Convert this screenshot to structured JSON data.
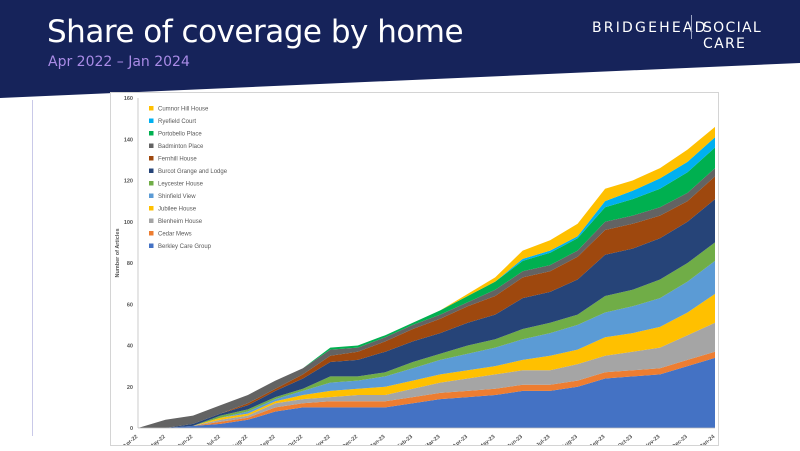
{
  "header": {
    "title": "Share of coverage by home",
    "subtitle": "Apr 2022 – Jan 2024",
    "brand_left": "BRIDGEHEAD",
    "brand_right": "SOCIAL CARE",
    "banner_color": "#16235a"
  },
  "chart_data": {
    "type": "area",
    "stacked": true,
    "categories": [
      "Apr-22",
      "May-22",
      "Jun-22",
      "Jul-22",
      "Aug-22",
      "Sep-22",
      "Oct-22",
      "Nov-22",
      "Dec-22",
      "Jan-23",
      "Feb-23",
      "Mar-23",
      "Apr-23",
      "May-23",
      "Jun-23",
      "Jul-23",
      "Aug-23",
      "Sep-23",
      "Oct-23",
      "Nov-23",
      "Dec-23",
      "Jan-24"
    ],
    "ylabel": "Number of Articles",
    "ylim": [
      0,
      160
    ],
    "yticks": [
      0,
      20,
      40,
      60,
      80,
      100,
      120,
      140,
      160
    ],
    "legend_position": "top-left",
    "series": [
      {
        "name": "Berkley Care Group",
        "color": "#4472c4",
        "values": [
          0,
          0,
          1,
          2,
          4,
          8,
          10,
          10,
          10,
          10,
          12,
          14,
          15,
          16,
          18,
          18,
          20,
          24,
          25,
          26,
          30,
          34
        ]
      },
      {
        "name": "Cedar Mews",
        "color": "#ed7d31",
        "values": [
          0,
          0,
          0,
          1,
          1,
          2,
          2,
          3,
          3,
          3,
          3,
          3,
          3,
          3,
          3,
          3,
          3,
          3,
          3,
          3,
          3,
          3
        ]
      },
      {
        "name": "Blenheim House",
        "color": "#a5a5a5",
        "values": [
          0,
          0,
          0,
          1,
          1,
          2,
          2,
          2,
          3,
          3,
          4,
          5,
          6,
          7,
          7,
          7,
          8,
          8,
          9,
          10,
          12,
          14
        ]
      },
      {
        "name": "Jubilee House",
        "color": "#ffc000",
        "values": [
          0,
          0,
          0,
          1,
          1,
          1,
          2,
          3,
          3,
          4,
          4,
          4,
          4,
          4,
          5,
          7,
          7,
          9,
          9,
          10,
          11,
          14
        ]
      },
      {
        "name": "Shinfield View",
        "color": "#5b9bd5",
        "values": [
          0,
          0,
          0,
          0,
          1,
          1,
          2,
          4,
          4,
          5,
          6,
          7,
          8,
          9,
          10,
          11,
          12,
          12,
          13,
          14,
          15,
          16
        ]
      },
      {
        "name": "Leycester House",
        "color": "#70ad47",
        "values": [
          0,
          0,
          0,
          1,
          1,
          1,
          1,
          3,
          2,
          2,
          3,
          3,
          4,
          4,
          5,
          5,
          5,
          8,
          8,
          9,
          9,
          9
        ]
      },
      {
        "name": "Burcot Grange and Lodge",
        "color": "#264478",
        "values": [
          0,
          0,
          1,
          1,
          2,
          3,
          5,
          7,
          8,
          10,
          10,
          10,
          11,
          12,
          15,
          15,
          17,
          20,
          20,
          20,
          20,
          21
        ]
      },
      {
        "name": "Fernhill House",
        "color": "#9e480e",
        "values": [
          0,
          0,
          0,
          0,
          1,
          1,
          2,
          3,
          4,
          5,
          6,
          7,
          8,
          9,
          10,
          10,
          11,
          12,
          12,
          11,
          10,
          11
        ]
      },
      {
        "name": "Badminton Place",
        "color": "#636363",
        "values": [
          0,
          4,
          4,
          4,
          4,
          4,
          3,
          3,
          2,
          2,
          2,
          2,
          2,
          3,
          3,
          3,
          3,
          4,
          4,
          4,
          4,
          4
        ]
      },
      {
        "name": "Portobello Place",
        "color": "#00b050",
        "values": [
          0,
          0,
          0,
          0,
          0,
          0,
          0,
          1,
          1,
          1,
          1,
          2,
          3,
          4,
          5,
          6,
          6,
          7,
          8,
          9,
          10,
          10
        ]
      },
      {
        "name": "Ryefield Court",
        "color": "#00b0f0",
        "values": [
          0,
          0,
          0,
          0,
          0,
          0,
          0,
          0,
          0,
          0,
          0,
          0,
          0,
          0,
          1,
          1,
          1,
          3,
          4,
          5,
          5,
          5
        ]
      },
      {
        "name": "Cumnor Hill House",
        "color": "#ffc000",
        "values": [
          0,
          0,
          0,
          0,
          0,
          0,
          0,
          0,
          0,
          0,
          0,
          0,
          1,
          2,
          4,
          5,
          6,
          6,
          5,
          5,
          6,
          5
        ]
      }
    ]
  }
}
